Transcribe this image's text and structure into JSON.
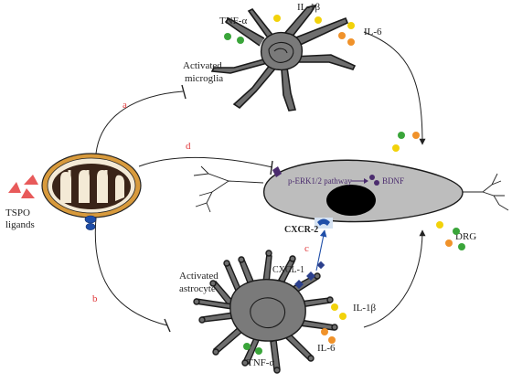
{
  "labels": {
    "tnf_top": "TNF-α",
    "il1b_top": "IL-1β",
    "il6_top": "IL-6",
    "microglia_line1": "Activated",
    "microglia_line2": "microglia",
    "tspo_line1": "TSPO",
    "tspo_line2": "ligands",
    "perk": "p-ERK1/2 pathway",
    "bdnf": "BDNF",
    "cxcr2": "CXCR-2",
    "drg": "DRG",
    "cxcl1": "CXCL-1",
    "astro_line1": "Activated",
    "astro_line2": "astrocyte",
    "il1b_bottom": "IL-1β",
    "il6_bottom": "IL-6",
    "tnf_bottom": "TNF-α"
  },
  "pathway_letters": {
    "a": "a",
    "b": "b",
    "c": "c",
    "d": "d"
  },
  "colors": {
    "letter": "#e0383a",
    "tspo": "#e85a5a",
    "dot_green": "#3aa53a",
    "dot_yellow": "#f2d20a",
    "dot_orange": "#f0922a",
    "cell_gray": "#bdbdbd",
    "cell_outline": "#1a1a1a",
    "glia_fill": "#6e6e6e",
    "receptor_blue": "#1f4ea8",
    "cxcl1_blue": "#2b3f8c",
    "perk_purple": "#4b2c6e",
    "mito_outer": "#d89a3c",
    "mito_inner": "#3a2418",
    "mito_cristae": "#f4ead6"
  },
  "icons": {
    "tspo_ligand": "triangle-icon",
    "mitochondrion": "mitochondrion-icon",
    "microglia": "microglia-cell-icon",
    "astrocyte": "astrocyte-cell-icon",
    "neuron": "drg-neuron-icon"
  }
}
